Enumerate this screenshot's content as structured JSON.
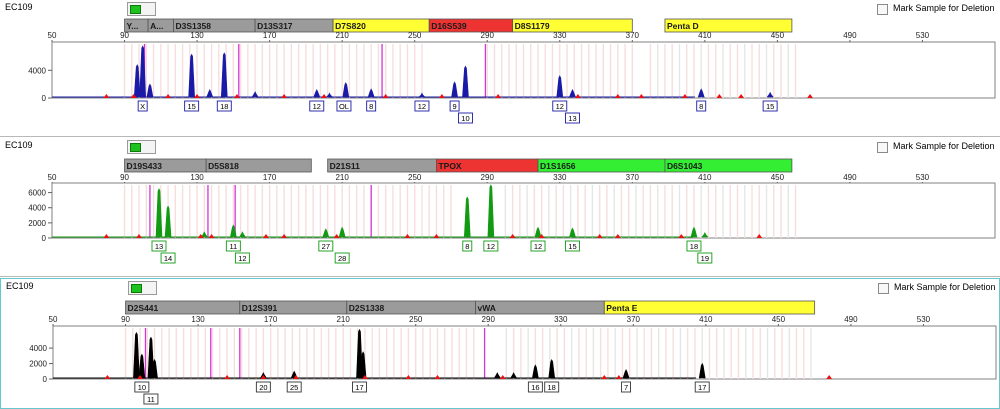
{
  "panels": [
    {
      "sample_name": "EC109",
      "mark_label": "Mark Sample for Deletion",
      "dye_color": "#1a1aa6",
      "selected": false,
      "loci": [
        {
          "label": "Y...",
          "color": "#9b9b9b",
          "start": 90,
          "end": 103
        },
        {
          "label": "A...",
          "color": "#9b9b9b",
          "start": 103,
          "end": 117
        },
        {
          "label": "D3S1358",
          "color": "#9b9b9b",
          "start": 117,
          "end": 162
        },
        {
          "label": "D13S317",
          "color": "#9b9b9b",
          "start": 162,
          "end": 205
        },
        {
          "label": "D7S820",
          "color": "#ffff33",
          "start": 205,
          "end": 258
        },
        {
          "label": "D16S539",
          "color": "#ee3333",
          "start": 258,
          "end": 304
        },
        {
          "label": "D8S1179",
          "color": "#ffff33",
          "start": 304,
          "end": 370
        },
        {
          "label": "Penta D",
          "color": "#ffff33",
          "start": 388,
          "end": 458
        }
      ],
      "peaks": [
        {
          "x": 97,
          "h": 4800
        },
        {
          "x": 100,
          "h": 7500
        },
        {
          "x": 104,
          "h": 2000
        },
        {
          "x": 127,
          "h": 6300
        },
        {
          "x": 145,
          "h": 6500
        },
        {
          "x": 137,
          "h": 1200
        },
        {
          "x": 162,
          "h": 900
        },
        {
          "x": 196,
          "h": 1200
        },
        {
          "x": 203,
          "h": 700
        },
        {
          "x": 212,
          "h": 2200
        },
        {
          "x": 226,
          "h": 1300
        },
        {
          "x": 254,
          "h": 700
        },
        {
          "x": 272,
          "h": 2300
        },
        {
          "x": 278,
          "h": 4600
        },
        {
          "x": 330,
          "h": 3200
        },
        {
          "x": 337,
          "h": 1200
        },
        {
          "x": 408,
          "h": 1300
        },
        {
          "x": 446,
          "h": 800
        }
      ],
      "ymax": 7800,
      "yticks": [
        0,
        4000
      ],
      "magenta_lines": [
        101,
        153,
        232,
        289
      ],
      "bins": {
        "pink": [
          [
            90,
            255
          ],
          [
            290,
            370
          ],
          [
            380,
            460
          ]
        ],
        "gray_every": 4
      },
      "red_markers": [
        80,
        95,
        114,
        130,
        152,
        178,
        200,
        234,
        265,
        296,
        340,
        362,
        375,
        399,
        418,
        430,
        468
      ],
      "alleles": [
        {
          "x": 100,
          "label": "X",
          "row": 0
        },
        {
          "x": 127,
          "label": "15",
          "row": 0
        },
        {
          "x": 145,
          "label": "18",
          "row": 0
        },
        {
          "x": 196,
          "label": "12",
          "row": 0
        },
        {
          "x": 211,
          "label": "OL",
          "row": 0
        },
        {
          "x": 226,
          "label": "8",
          "row": 0
        },
        {
          "x": 254,
          "label": "12",
          "row": 0
        },
        {
          "x": 272,
          "label": "9",
          "row": 0
        },
        {
          "x": 278,
          "label": "10",
          "row": 1
        },
        {
          "x": 330,
          "label": "12",
          "row": 0
        },
        {
          "x": 337,
          "label": "13",
          "row": 1
        },
        {
          "x": 408,
          "label": "8",
          "row": 0
        },
        {
          "x": 446,
          "label": "15",
          "row": 0
        }
      ]
    },
    {
      "sample_name": "EC109",
      "mark_label": "Mark Sample for Deletion",
      "dye_color": "#129a12",
      "selected": false,
      "loci": [
        {
          "label": "D19S433",
          "color": "#9b9b9b",
          "start": 90,
          "end": 135
        },
        {
          "label": "D5S818",
          "color": "#9b9b9b",
          "start": 135,
          "end": 193
        },
        {
          "label": "D21S11",
          "color": "#9b9b9b",
          "start": 202,
          "end": 262
        },
        {
          "label": "TPOX",
          "color": "#ee3333",
          "start": 262,
          "end": 318
        },
        {
          "label": "D1S1656",
          "color": "#33ee33",
          "start": 318,
          "end": 388
        },
        {
          "label": "D6S1043",
          "color": "#33ee33",
          "start": 388,
          "end": 458
        }
      ],
      "peaks": [
        {
          "x": 109,
          "h": 6500
        },
        {
          "x": 114,
          "h": 4200
        },
        {
          "x": 134,
          "h": 800
        },
        {
          "x": 150,
          "h": 1700
        },
        {
          "x": 155,
          "h": 800
        },
        {
          "x": 201,
          "h": 1200
        },
        {
          "x": 210,
          "h": 1400
        },
        {
          "x": 279,
          "h": 5400
        },
        {
          "x": 292,
          "h": 7000
        },
        {
          "x": 318,
          "h": 1400
        },
        {
          "x": 337,
          "h": 1300
        },
        {
          "x": 404,
          "h": 1400
        },
        {
          "x": 410,
          "h": 700
        }
      ],
      "ymax": 7000,
      "yticks": [
        0,
        2000,
        4000,
        6000
      ],
      "magenta_lines": [
        104,
        136,
        151,
        226
      ],
      "bins": {
        "pink": [
          [
            90,
            270
          ],
          [
            300,
            460
          ]
        ],
        "gray_every": 4
      },
      "red_markers": [
        80,
        98,
        132,
        138,
        168,
        178,
        207,
        246,
        262,
        304,
        320,
        352,
        362,
        397,
        440
      ],
      "alleles": [
        {
          "x": 109,
          "label": "13",
          "row": 0
        },
        {
          "x": 114,
          "label": "14",
          "row": 1
        },
        {
          "x": 150,
          "label": "11",
          "row": 0
        },
        {
          "x": 155,
          "label": "12",
          "row": 1
        },
        {
          "x": 201,
          "label": "27",
          "row": 0
        },
        {
          "x": 210,
          "label": "28",
          "row": 1
        },
        {
          "x": 279,
          "label": "8",
          "row": 0
        },
        {
          "x": 292,
          "label": "12",
          "row": 0
        },
        {
          "x": 318,
          "label": "12",
          "row": 0
        },
        {
          "x": 337,
          "label": "15",
          "row": 0
        },
        {
          "x": 404,
          "label": "18",
          "row": 0
        },
        {
          "x": 410,
          "label": "19",
          "row": 1
        }
      ]
    },
    {
      "sample_name": "EC109",
      "mark_label": "Mark Sample for Deletion",
      "dye_color": "#000000",
      "selected": true,
      "loci": [
        {
          "label": "D2S441",
          "color": "#9b9b9b",
          "start": 90,
          "end": 153
        },
        {
          "label": "D12S391",
          "color": "#9b9b9b",
          "start": 153,
          "end": 212
        },
        {
          "label": "D2S1338",
          "color": "#9b9b9b",
          "start": 212,
          "end": 283
        },
        {
          "label": "vWA",
          "color": "#9b9b9b",
          "start": 283,
          "end": 354
        },
        {
          "label": "Penta E",
          "color": "#ffff33",
          "start": 354,
          "end": 470
        }
      ],
      "peaks": [
        {
          "x": 96,
          "h": 6000
        },
        {
          "x": 99,
          "h": 3200
        },
        {
          "x": 104,
          "h": 5400
        },
        {
          "x": 106,
          "h": 2500
        },
        {
          "x": 166,
          "h": 800
        },
        {
          "x": 183,
          "h": 1000
        },
        {
          "x": 219,
          "h": 6400
        },
        {
          "x": 221,
          "h": 3500
        },
        {
          "x": 295,
          "h": 800
        },
        {
          "x": 304,
          "h": 800
        },
        {
          "x": 316,
          "h": 1800
        },
        {
          "x": 325,
          "h": 2500
        },
        {
          "x": 366,
          "h": 1200
        },
        {
          "x": 408,
          "h": 2000
        }
      ],
      "ymax": 6600,
      "yticks": [
        0,
        2000,
        4000
      ],
      "magenta_lines": [
        101,
        137,
        153,
        288
      ],
      "bins": {
        "pink": [
          [
            90,
            283
          ],
          [
            300,
            470
          ]
        ],
        "gray_every": 4
      },
      "red_markers": [
        80,
        98,
        146,
        166,
        184,
        222,
        246,
        262,
        298,
        354,
        362,
        478
      ],
      "alleles": [
        {
          "x": 99,
          "label": "10",
          "row": 0
        },
        {
          "x": 104,
          "label": "11",
          "row": 1
        },
        {
          "x": 166,
          "label": "20",
          "row": 0
        },
        {
          "x": 183,
          "label": "25",
          "row": 0
        },
        {
          "x": 219,
          "label": "17",
          "row": 0
        },
        {
          "x": 316,
          "label": "16",
          "row": 0
        },
        {
          "x": 325,
          "label": "18",
          "row": 0
        },
        {
          "x": 366,
          "label": "7",
          "row": 0
        },
        {
          "x": 408,
          "label": "17",
          "row": 0
        }
      ]
    }
  ],
  "xticks": [
    50,
    90,
    130,
    170,
    210,
    250,
    290,
    330,
    370,
    410,
    450,
    490,
    530
  ]
}
